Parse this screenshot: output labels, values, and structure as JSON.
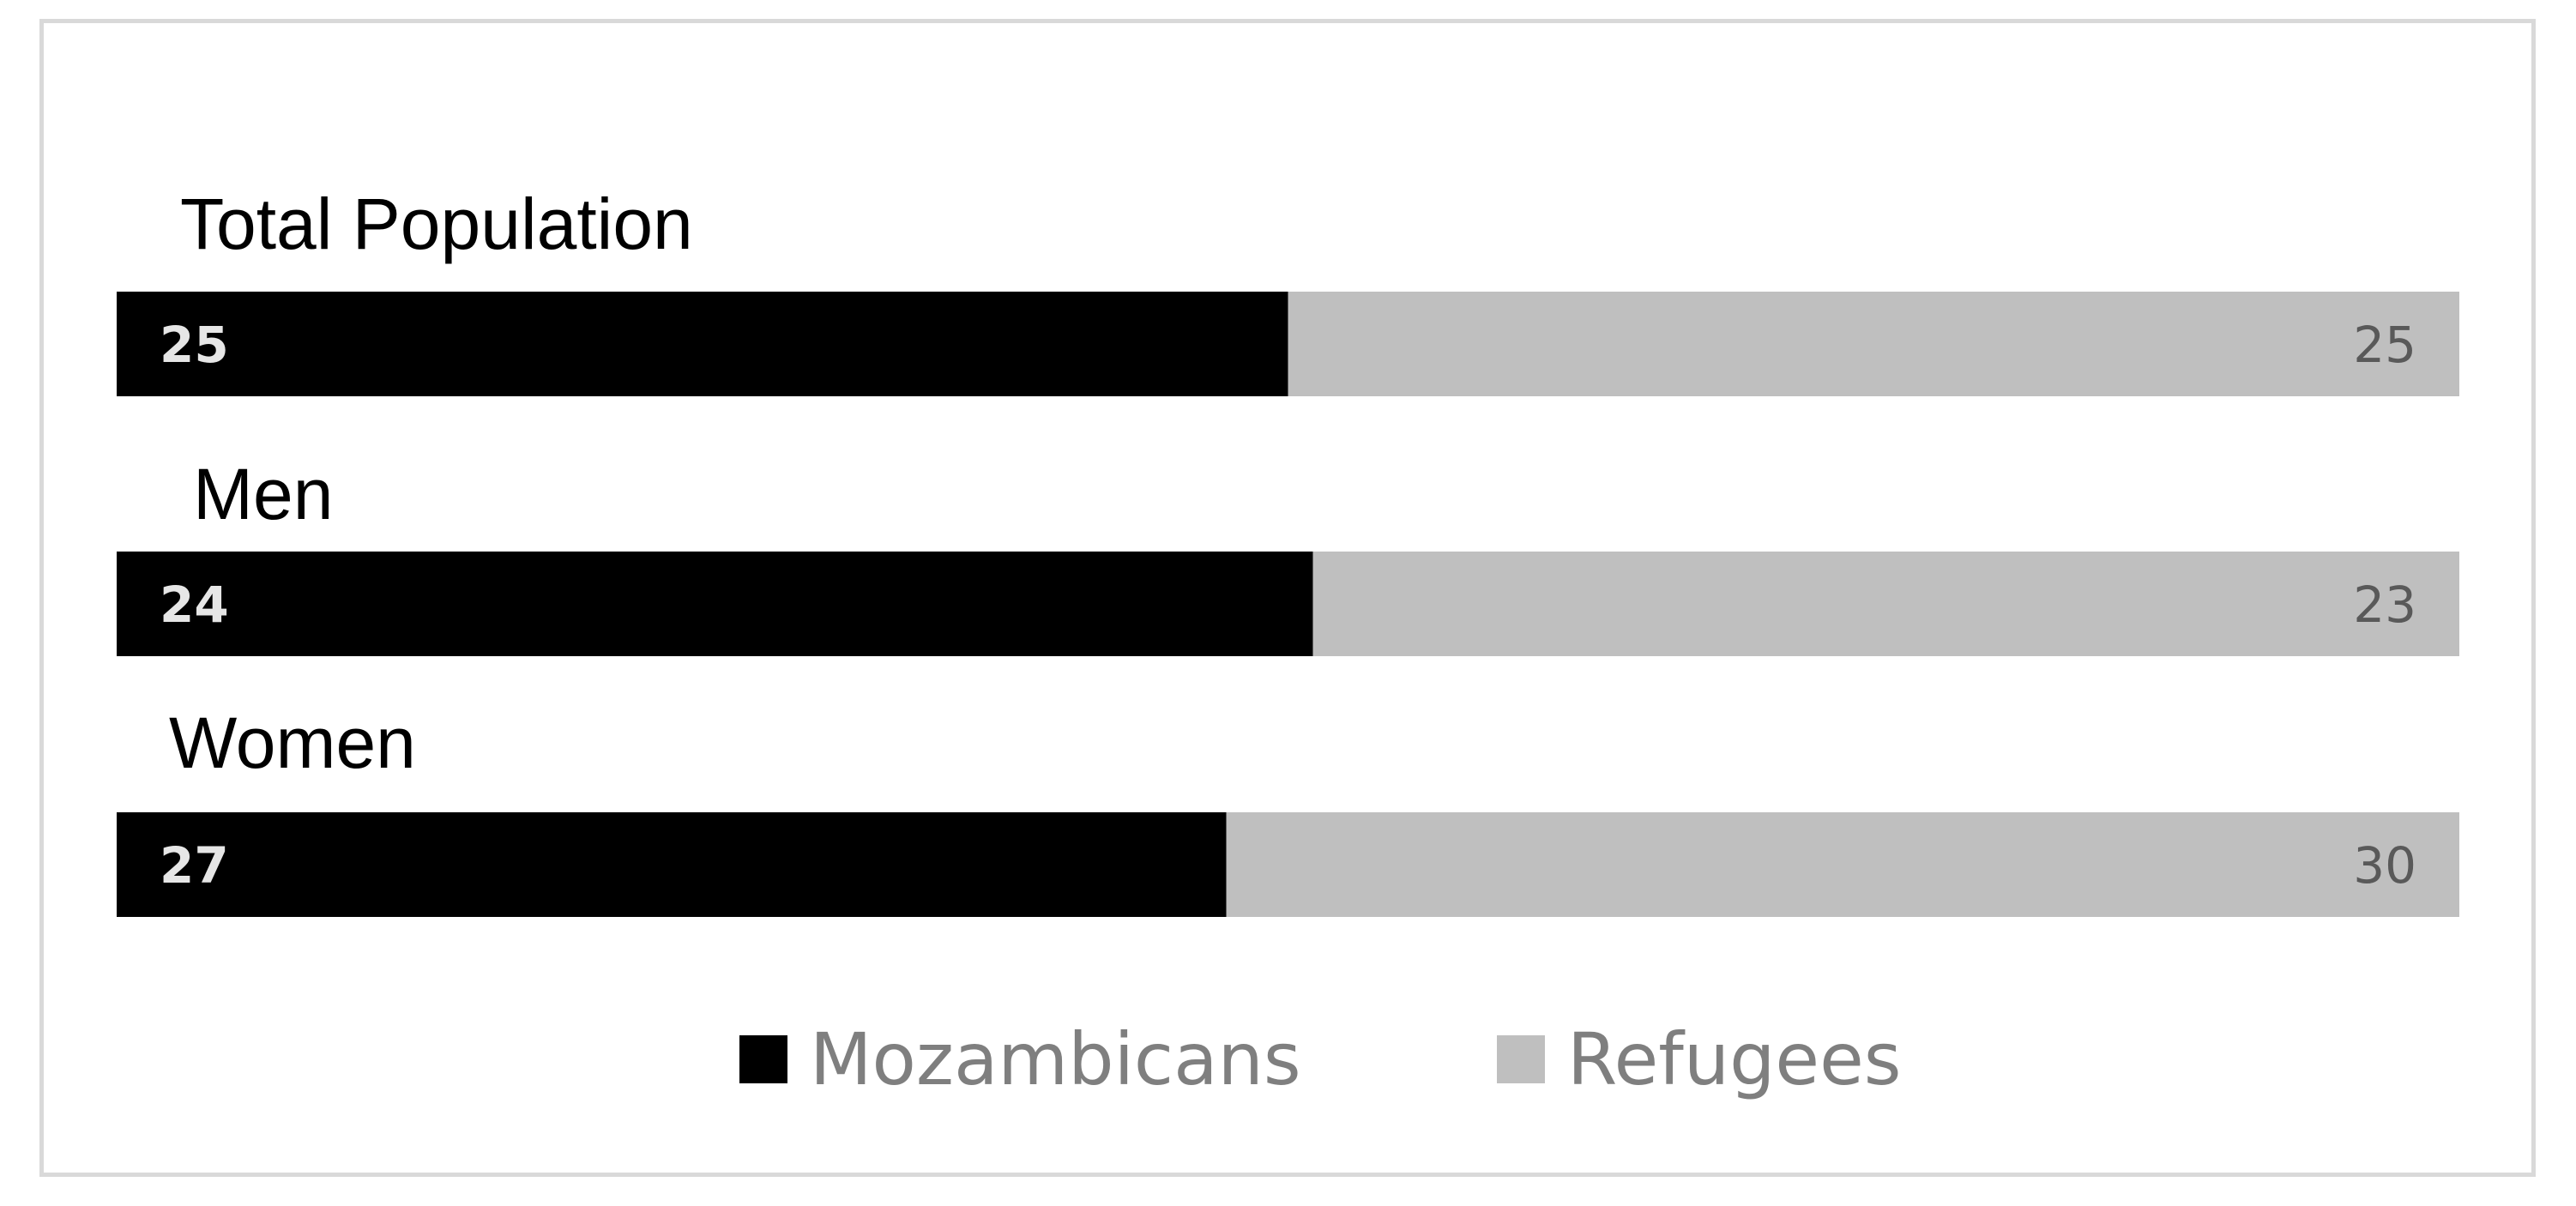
{
  "chart_data": {
    "type": "bar",
    "stacked": true,
    "normalized_100_percent": true,
    "orientation": "horizontal",
    "categories": [
      "Total Population",
      "Men",
      "Women"
    ],
    "series": [
      {
        "name": "Mozambicans",
        "color": "#000000",
        "label_color": "#e6e6e6",
        "values": [
          25,
          24,
          27
        ]
      },
      {
        "name": "Refugees",
        "color": "#bfbfbf",
        "label_color": "#595959",
        "values": [
          25,
          23,
          30
        ]
      }
    ],
    "title": "",
    "xlabel": "",
    "ylabel": "",
    "grid": false,
    "axes_visible": false,
    "legend_position": "bottom",
    "border_color": "#d9d9d9"
  }
}
